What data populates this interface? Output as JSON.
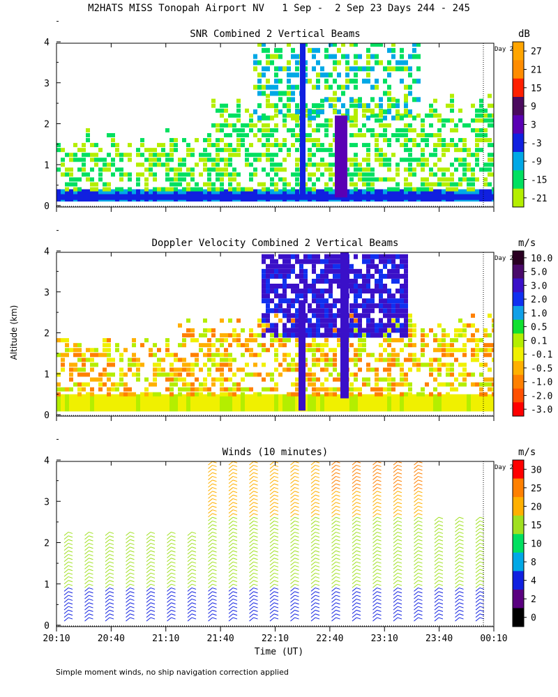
{
  "title": "M2HATS MISS Tonopah Airport NV   1 Sep -  2 Sep 23 Days 244 - 245",
  "ylabel": "Altitude (km)",
  "xlabel": "Time (UT)",
  "footnote": "Simple moment winds, no ship navigation correction applied",
  "day_marker": "Day 2",
  "chart_data": [
    {
      "type": "heatmap",
      "title": "SNR Combined 2 Vertical Beams",
      "units": "dB",
      "ylim": [
        0,
        4
      ],
      "yticks": [
        "0",
        "1",
        "2",
        "3",
        "4"
      ],
      "colorbar_ticks": [
        "27",
        "21",
        "15",
        "9",
        "3",
        "-3",
        "-9",
        "-15",
        "-21"
      ],
      "colorbar_colors": [
        "#ffa500",
        "#ff8c00",
        "#ff2000",
        "#4b0a5e",
        "#5a00b4",
        "#1020e0",
        "#00a8e6",
        "#00e060",
        "#b4ee00"
      ]
    },
    {
      "type": "heatmap",
      "title": "Doppler Velocity Combined 2 Vertical Beams",
      "units": "m/s",
      "ylim": [
        0,
        4
      ],
      "yticks": [
        "0",
        "1",
        "2",
        "3",
        "4"
      ],
      "colorbar_ticks": [
        "10.0",
        "5.0",
        "3.0",
        "2.0",
        "1.0",
        "0.5",
        "0.1",
        "-0.1",
        "-0.5",
        "-1.0",
        "-2.0",
        "-3.0"
      ],
      "colorbar_colors": [
        "#2a0022",
        "#4a0a6a",
        "#3a10c8",
        "#1030f0",
        "#10a0e8",
        "#10e030",
        "#b4ee00",
        "#f0f000",
        "#ffb000",
        "#ff8000",
        "#ff5000",
        "#ff0000"
      ]
    },
    {
      "type": "scatter",
      "title": "Winds (10 minutes)",
      "units": "m/s",
      "ylim": [
        0,
        4
      ],
      "yticks": [
        "0",
        "1",
        "2",
        "3",
        "4"
      ],
      "colorbar_ticks": [
        "30",
        "25",
        "20",
        "15",
        "10",
        "8",
        "4",
        "2",
        "0"
      ],
      "colorbar_colors": [
        "#ff0000",
        "#ff8000",
        "#ffb000",
        "#a0e020",
        "#00e060",
        "#00a8e6",
        "#1020e0",
        "#5a0080",
        "#000000"
      ]
    }
  ],
  "xticks": [
    "20:10",
    "20:40",
    "21:10",
    "21:40",
    "22:10",
    "22:40",
    "23:10",
    "23:40",
    "00:10"
  ]
}
